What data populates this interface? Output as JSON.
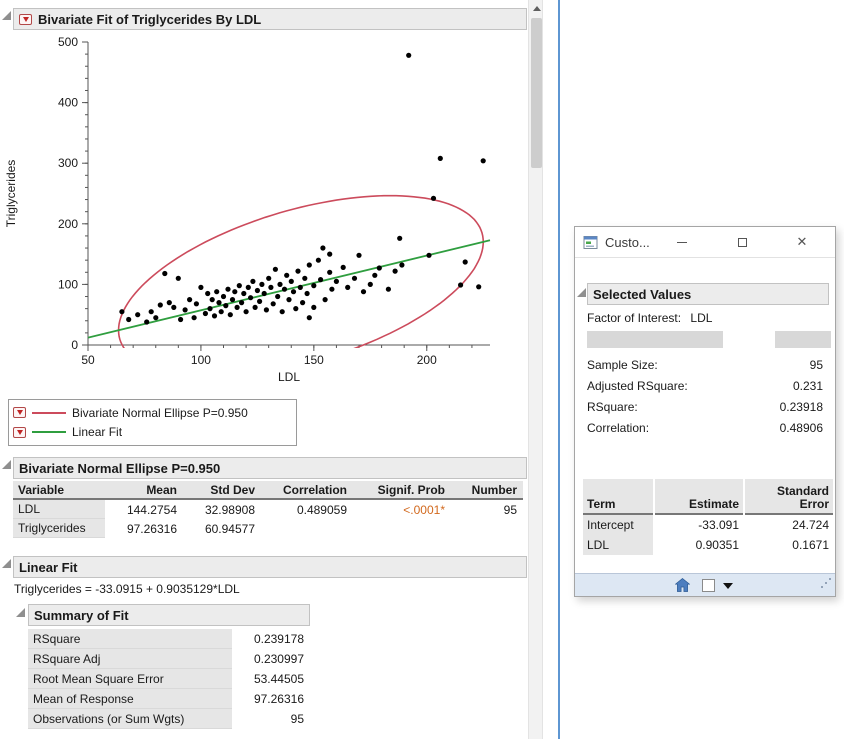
{
  "report": {
    "title": "Bivariate Fit of Triglycerides By LDL",
    "legend": [
      {
        "label": "Bivariate Normal Ellipse P=0.950",
        "color": "#cc4b5c"
      },
      {
        "label": "Linear Fit",
        "color": "#2f9e3f"
      }
    ],
    "ellipse_section": {
      "title": "Bivariate Normal Ellipse P=0.950",
      "columns": [
        "Variable",
        "Mean",
        "Std Dev",
        "Correlation",
        "Signif. Prob",
        "Number"
      ],
      "rows": [
        {
          "variable": "LDL",
          "mean": "144.2754",
          "std_dev": "32.98908",
          "correlation": "0.489059",
          "signif_prob": "<.0001*",
          "number": "95"
        },
        {
          "variable": "Triglycerides",
          "mean": "97.26316",
          "std_dev": "60.94577",
          "correlation": "",
          "signif_prob": "",
          "number": ""
        }
      ]
    },
    "linear_fit": {
      "title": "Linear Fit",
      "equation": "Triglycerides = -33.0915 + 0.9035129*LDL"
    },
    "summary_of_fit": {
      "title": "Summary of Fit",
      "rows": [
        [
          "RSquare",
          "0.239178"
        ],
        [
          "RSquare Adj",
          "0.230997"
        ],
        [
          "Root Mean Square Error",
          "53.44505"
        ],
        [
          "Mean of Response",
          "97.26316"
        ],
        [
          "Observations (or Sum Wgts)",
          "95"
        ]
      ]
    }
  },
  "chart_data": {
    "type": "scatter",
    "xlabel": "LDL",
    "ylabel": "Triglycerides",
    "xlim": [
      50,
      228
    ],
    "ylim": [
      0,
      500
    ],
    "xticks": [
      50,
      100,
      150,
      200
    ],
    "yticks": [
      0,
      100,
      200,
      300,
      400,
      500
    ],
    "point_color": "#000000",
    "linear_fit": {
      "intercept": -33.0915,
      "slope": 0.9035129,
      "color": "#2f9e3f"
    },
    "ellipse": {
      "mean_x": 144.2754,
      "mean_y": 97.26316,
      "sd_x": 32.98908,
      "sd_y": 60.94577,
      "correlation": 0.489059,
      "p": 0.95,
      "color": "#cc4b5c"
    },
    "points": [
      [
        192,
        478
      ],
      [
        206,
        308
      ],
      [
        225,
        304
      ],
      [
        203,
        242
      ],
      [
        188,
        176
      ],
      [
        154,
        160
      ],
      [
        170,
        148
      ],
      [
        201,
        148
      ],
      [
        217,
        137
      ],
      [
        223,
        96
      ],
      [
        215,
        99
      ],
      [
        189,
        132
      ],
      [
        186,
        122
      ],
      [
        179,
        127
      ],
      [
        177,
        115
      ],
      [
        183,
        92
      ],
      [
        175,
        100
      ],
      [
        172,
        88
      ],
      [
        168,
        110
      ],
      [
        165,
        95
      ],
      [
        163,
        128
      ],
      [
        160,
        105
      ],
      [
        158,
        92
      ],
      [
        157,
        120
      ],
      [
        155,
        75
      ],
      [
        153,
        108
      ],
      [
        152,
        140
      ],
      [
        150,
        98
      ],
      [
        150,
        62
      ],
      [
        148,
        132
      ],
      [
        147,
        85
      ],
      [
        146,
        110
      ],
      [
        145,
        70
      ],
      [
        144,
        95
      ],
      [
        143,
        122
      ],
      [
        142,
        60
      ],
      [
        141,
        88
      ],
      [
        140,
        105
      ],
      [
        139,
        75
      ],
      [
        138,
        115
      ],
      [
        137,
        92
      ],
      [
        136,
        55
      ],
      [
        135,
        100
      ],
      [
        134,
        80
      ],
      [
        133,
        125
      ],
      [
        132,
        68
      ],
      [
        131,
        95
      ],
      [
        130,
        110
      ],
      [
        129,
        58
      ],
      [
        128,
        85
      ],
      [
        127,
        100
      ],
      [
        126,
        72
      ],
      [
        125,
        90
      ],
      [
        124,
        62
      ],
      [
        123,
        105
      ],
      [
        122,
        78
      ],
      [
        121,
        95
      ],
      [
        120,
        55
      ],
      [
        119,
        85
      ],
      [
        118,
        70
      ],
      [
        117,
        98
      ],
      [
        116,
        62
      ],
      [
        115,
        88
      ],
      [
        114,
        75
      ],
      [
        113,
        50
      ],
      [
        112,
        92
      ],
      [
        111,
        65
      ],
      [
        110,
        80
      ],
      [
        109,
        55
      ],
      [
        108,
        70
      ],
      [
        107,
        88
      ],
      [
        106,
        48
      ],
      [
        105,
        75
      ],
      [
        104,
        60
      ],
      [
        103,
        85
      ],
      [
        102,
        52
      ],
      [
        100,
        95
      ],
      [
        98,
        68
      ],
      [
        97,
        45
      ],
      [
        95,
        75
      ],
      [
        93,
        58
      ],
      [
        91,
        42
      ],
      [
        90,
        110
      ],
      [
        88,
        62
      ],
      [
        86,
        70
      ],
      [
        84,
        118
      ],
      [
        82,
        66
      ],
      [
        80,
        45
      ],
      [
        78,
        55
      ],
      [
        76,
        38
      ],
      [
        72,
        50
      ],
      [
        68,
        42
      ],
      [
        65,
        55
      ],
      [
        148,
        45
      ],
      [
        157,
        150
      ]
    ]
  },
  "floating_window": {
    "title": "Custo...",
    "icons": {
      "close": "✕"
    },
    "section_title": "Selected Values",
    "factor_label": "Factor of Interest:",
    "factor_value": "LDL",
    "stats": [
      {
        "label": "Sample Size:",
        "value": "95"
      },
      {
        "label": "Adjusted RSquare:",
        "value": "0.231"
      },
      {
        "label": "RSquare:",
        "value": "0.23918"
      },
      {
        "label": "Correlation:",
        "value": "0.48906"
      }
    ],
    "table": {
      "columns": [
        "Term",
        "Estimate",
        "Standard Error"
      ],
      "rows": [
        {
          "term": "Intercept",
          "estimate": "-33.091",
          "std_error": "24.724"
        },
        {
          "term": "LDL",
          "estimate": "0.90351",
          "std_error": "0.1671"
        }
      ]
    }
  },
  "colors": {
    "significant": "#d2691e",
    "ellipse": "#cc4b5c",
    "fit_line": "#2f9e3f",
    "accent_divider": "#5e96d2",
    "header_bar": "#ececec",
    "table_label_bg": "#e6e6e6"
  }
}
